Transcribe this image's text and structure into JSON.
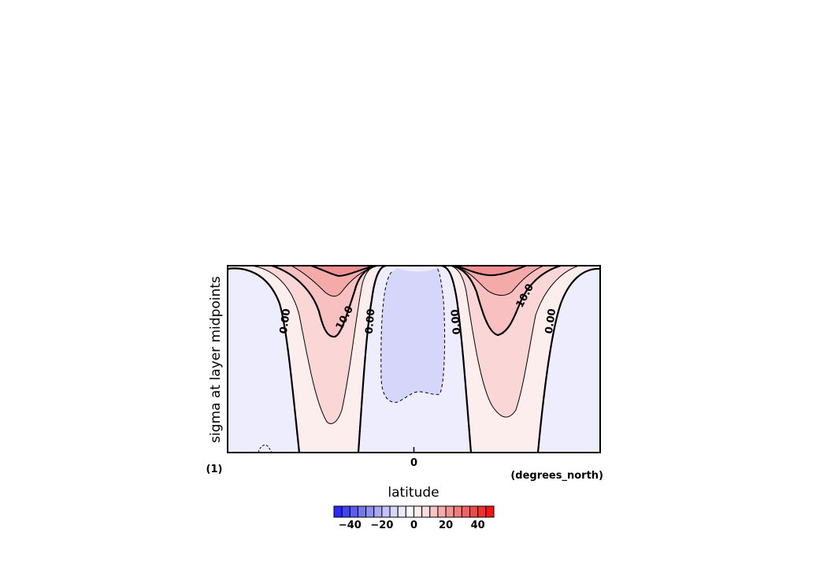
{
  "chart_data": {
    "type": "heatmap",
    "subtype": "filled-contour",
    "title": "",
    "xlabel": "latitude",
    "xunits": "(degrees_north)",
    "ylabel": "sigma at layer midpoints",
    "yunits": "(1)",
    "x_ticks": [
      0
    ],
    "x_tick_labels": [
      "0"
    ],
    "xlim": [
      -90,
      90
    ],
    "ylim": [
      1,
      0
    ],
    "y_inverted": true,
    "contour_levels": [
      0.0,
      10.0
    ],
    "contour_labels": [
      "0.00",
      "10.0",
      "0.00",
      "0.00",
      "10.0",
      "0.00"
    ],
    "negative_contours_dashed": true,
    "field_description": [
      {
        "region": "polar (both hemispheres)",
        "sign": "negative",
        "magnitude": "0 to -5"
      },
      {
        "region": "mid-latitude jets (~45S, ~45N)",
        "sign": "positive",
        "magnitude": "up to ~40 near top"
      },
      {
        "region": "equatorial band",
        "sign": "negative",
        "magnitude": "0 to -5"
      }
    ],
    "grid": false,
    "colorbar": {
      "orientation": "horizontal",
      "placement": "bottom",
      "levels": [
        -50,
        -45,
        -40,
        -35,
        -30,
        -25,
        -20,
        -15,
        -10,
        -5,
        0,
        5,
        10,
        15,
        20,
        25,
        30,
        35,
        40,
        45,
        50
      ],
      "tick_values": [
        -40,
        -20,
        0,
        20,
        40
      ],
      "tick_labels": [
        "−40",
        "−20",
        "0",
        "20",
        "40"
      ],
      "colors": [
        "#2a2aff",
        "#4444f5",
        "#5c5cf0",
        "#7676f0",
        "#9090f3",
        "#a9a9f6",
        "#c3c3f9",
        "#d6d6fb",
        "#eaeafd",
        "#fafaff",
        "#fff0f0",
        "#fcdcdc",
        "#f9c4c4",
        "#f6acac",
        "#f39494",
        "#f07c7c",
        "#ee6464",
        "#ef4a4a",
        "#f23030",
        "#f81414"
      ]
    }
  }
}
